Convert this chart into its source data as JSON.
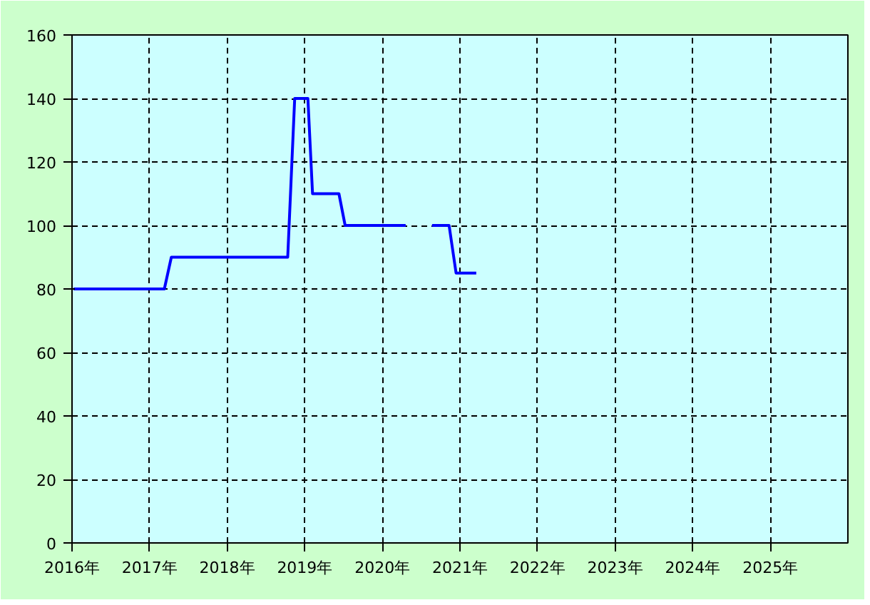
{
  "chart_data": {
    "type": "line",
    "x": [
      2016.02,
      2017.19,
      2017.28,
      2018.78,
      2018.87,
      2019.04,
      2019.1,
      2019.44,
      2019.52,
      2020.3,
      2020.47,
      2020.64,
      2020.86,
      2020.95,
      2021.21
    ],
    "series": [
      {
        "color": "#0000ff",
        "values": [
          80,
          80,
          90,
          90,
          140,
          140,
          110,
          110,
          100,
          100,
          null,
          100,
          100,
          85,
          85
        ]
      }
    ],
    "xlim": [
      2016,
      2026
    ],
    "xticks": [
      {
        "value": 2016,
        "label": "2016年"
      },
      {
        "value": 2017,
        "label": "2017年"
      },
      {
        "value": 2018,
        "label": "2018年"
      },
      {
        "value": 2019,
        "label": "2019年"
      },
      {
        "value": 2020,
        "label": "2020年"
      },
      {
        "value": 2021,
        "label": "2021年"
      },
      {
        "value": 2022,
        "label": "2022年"
      },
      {
        "value": 2023,
        "label": "2023年"
      },
      {
        "value": 2024,
        "label": "2024年"
      },
      {
        "value": 2025,
        "label": "2025年"
      }
    ],
    "ylim": [
      0,
      160
    ],
    "yticks": [
      0,
      20,
      40,
      60,
      80,
      100,
      120,
      140,
      160
    ],
    "grid": true,
    "marker": "none",
    "line_style": "solid"
  }
}
